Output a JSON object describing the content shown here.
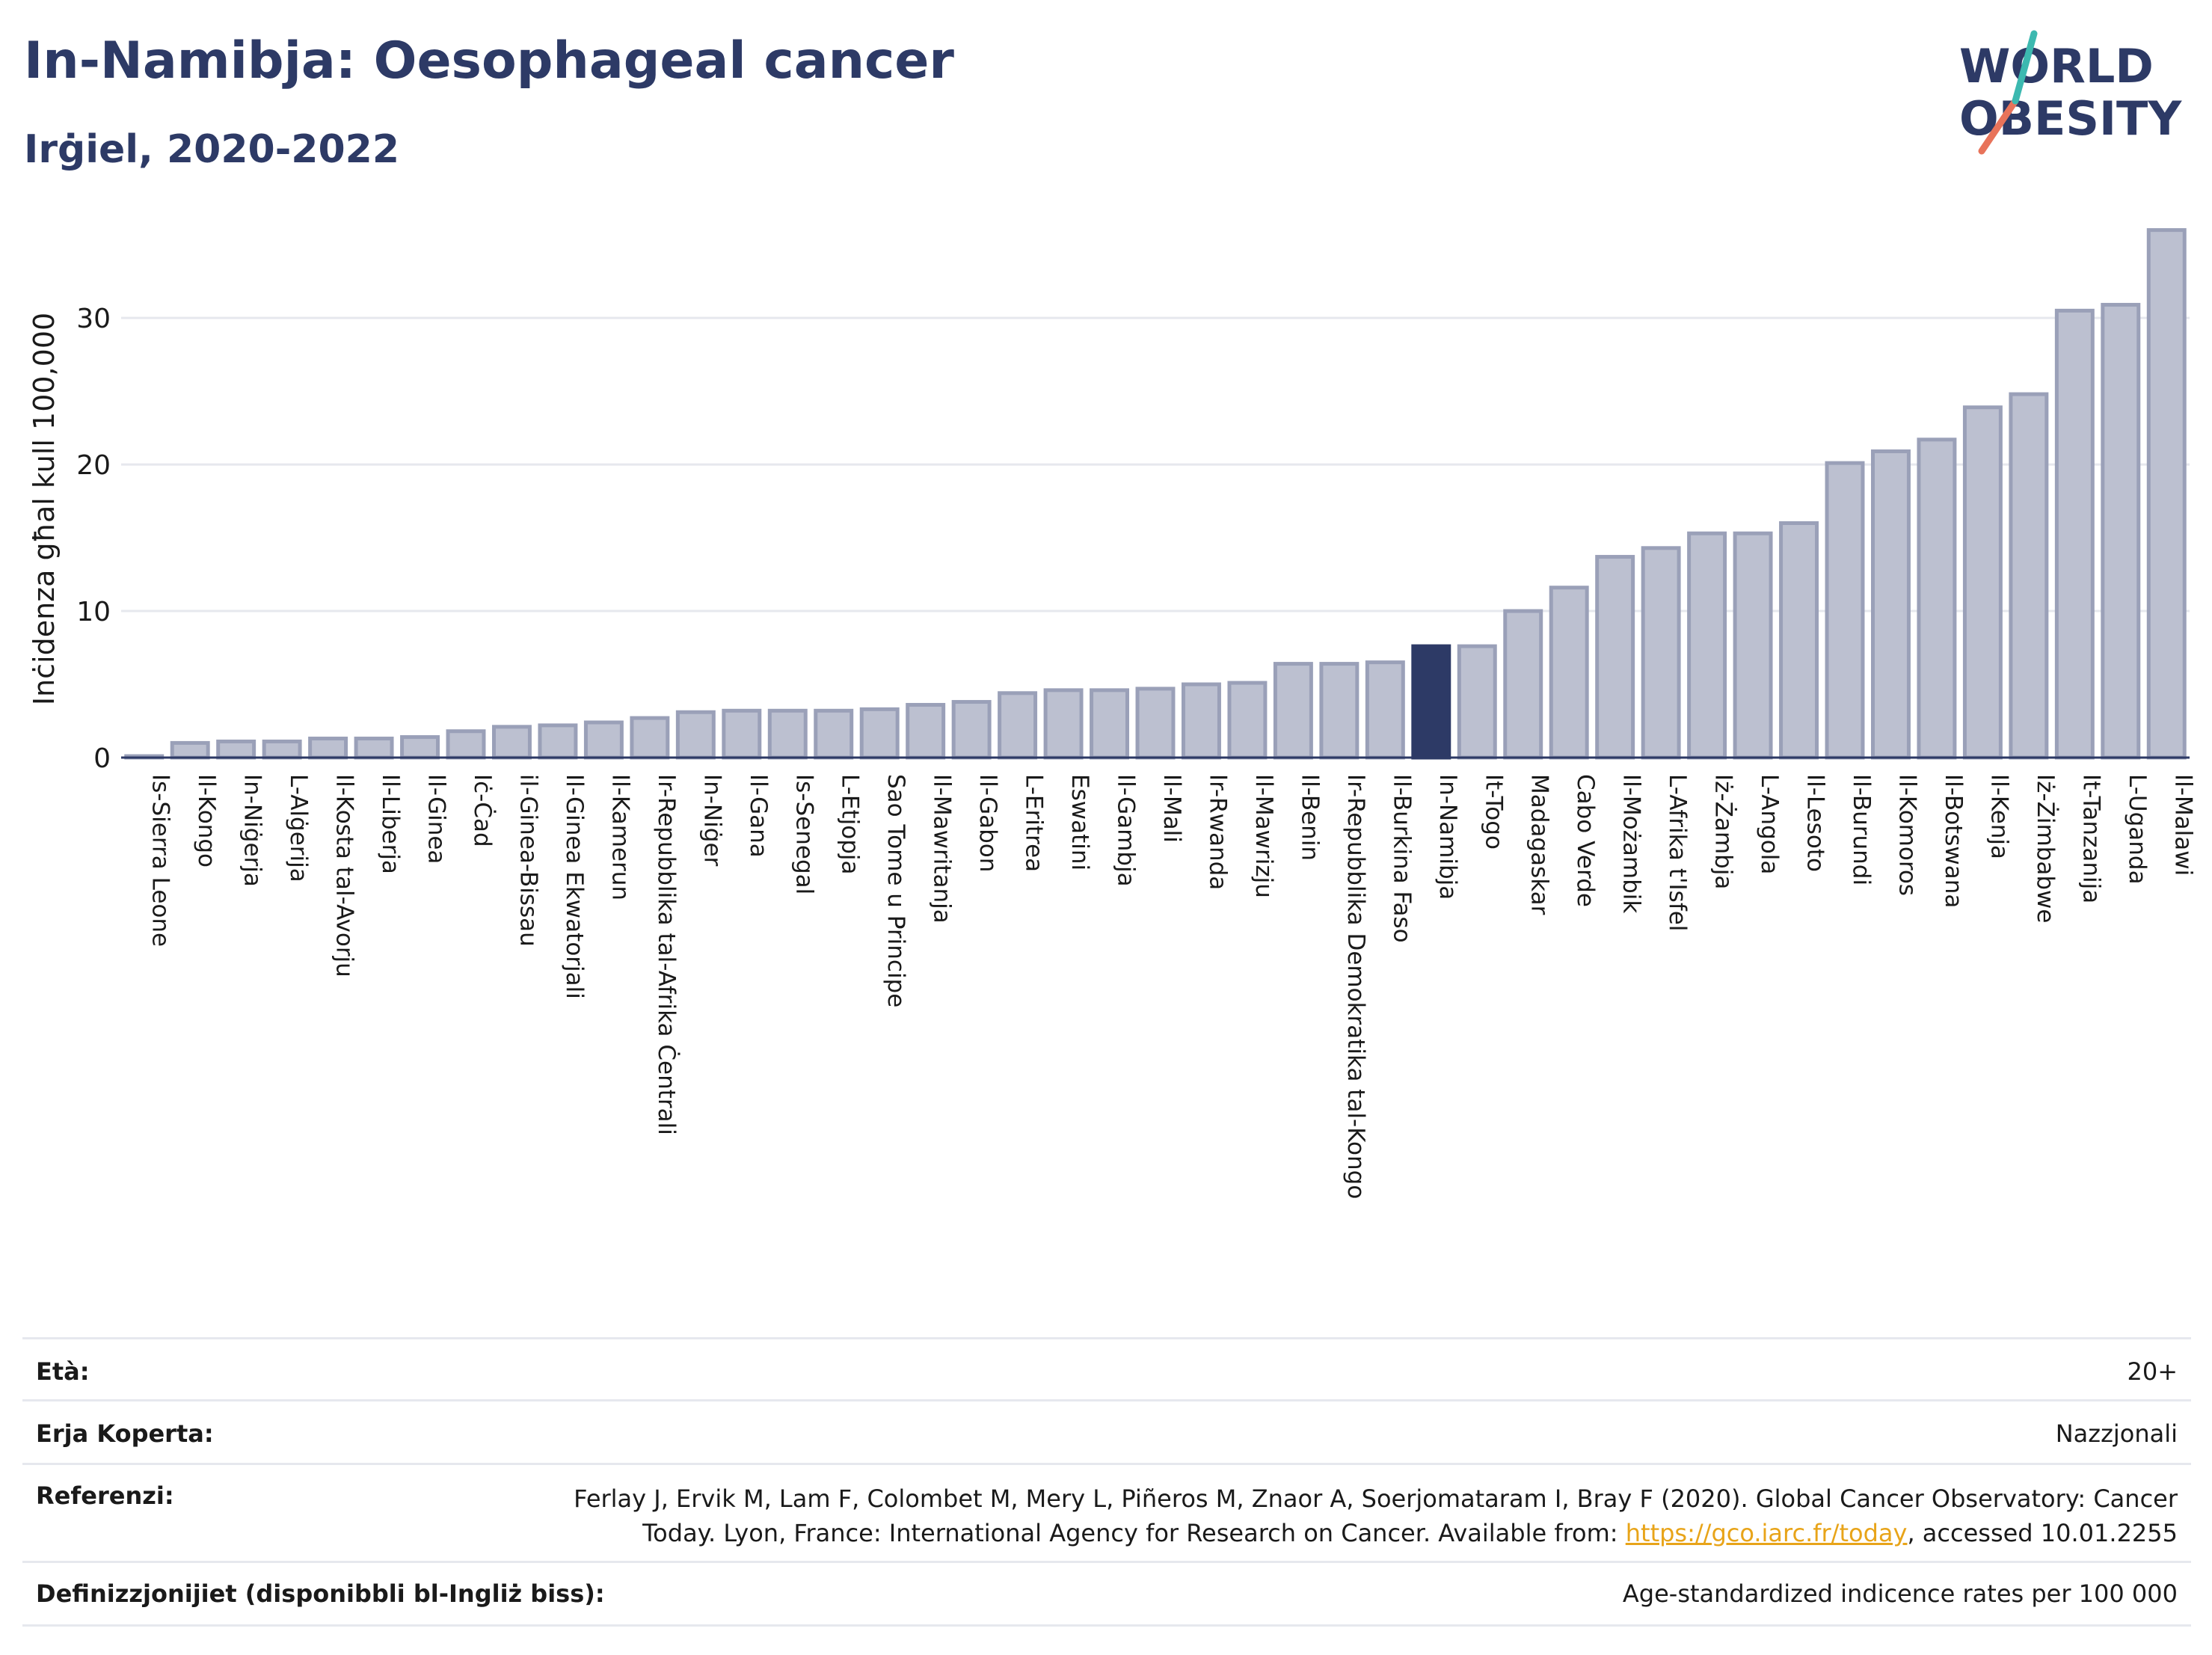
{
  "header": {
    "title": "In-Namibja: Oesophageal cancer",
    "subtitle": "Irġiel, 2020-2022",
    "logo_line1": "WORLD",
    "logo_line2": "OBESITY"
  },
  "chart_data": {
    "type": "bar",
    "ylabel": "Inċidenza għal kull 100,000",
    "xlabel": "",
    "ylim": [
      0,
      37
    ],
    "yticks": [
      0,
      10,
      20,
      30
    ],
    "grid": true,
    "highlight": "In-Namibja",
    "colors": {
      "bar": "#bcc0d0",
      "bar_edge": "#9aa0b8",
      "highlight": "#2d3a66"
    },
    "categories": [
      "Is-Sierra Leone",
      "Il-Kongo",
      "In-Niġerja",
      "L-Alġerija",
      "Il-Kosta tal-Avorju",
      "Il-Liberja",
      "Il-Ginea",
      "Iċ-Ċad",
      "il-Ginea-Bissau",
      "Il-Ginea Ekwatorjali",
      "Il-Kamerun",
      "Ir-Repubblika tal-Afrika Ċentrali",
      "In-Niġer",
      "Il-Gana",
      "Is-Senegal",
      "L-Etjopja",
      "Sao Tome u Principe",
      "Il-Mawritanja",
      "Il-Gabon",
      "L-Eritrea",
      "Eswatini",
      "Il-Gambja",
      "Il-Mali",
      "Ir-Rwanda",
      "Il-Mawrizju",
      "Il-Benin",
      "Ir-Repubblika Demokratika tal-Kongo",
      "Il-Burkina Faso",
      "In-Namibja",
      "It-Togo",
      "Madagaskar",
      "Cabo Verde",
      "Il-Możambik",
      "L-Afrika t'Isfel",
      "Iż-Żambja",
      "L-Angola",
      "Il-Lesoto",
      "Il-Burundi",
      "Il-Komoros",
      "Il-Botswana",
      "Il-Kenja",
      "Iż-Żimbabwe",
      "It-Tanzanija",
      "L-Uganda",
      "Il-Malawi"
    ],
    "values": [
      0.1,
      1.0,
      1.1,
      1.1,
      1.3,
      1.3,
      1.4,
      1.8,
      2.1,
      2.2,
      2.4,
      2.7,
      3.1,
      3.2,
      3.2,
      3.2,
      3.3,
      3.6,
      3.8,
      4.4,
      4.6,
      4.6,
      4.7,
      5.0,
      5.1,
      6.4,
      6.4,
      6.5,
      7.6,
      7.6,
      10.0,
      11.6,
      13.7,
      14.3,
      15.3,
      15.3,
      16.0,
      20.1,
      20.9,
      21.7,
      23.9,
      24.8,
      30.5,
      30.9,
      36.0
    ]
  },
  "meta": {
    "age_label": "Età:",
    "age_value": "20+",
    "area_label": "Erja Koperta:",
    "area_value": "Nazzjonali",
    "ref_label": "Referenzi:",
    "ref_line1": "Ferlay J, Ervik M, Lam F, Colombet M, Mery L, Piñeros M, Znaor A, Soerjomataram I, Bray F (2020). Global Cancer Observatory: Cancer",
    "ref_line2_pre": "Today. Lyon, France: International Agency for Research on Cancer. Available from: ",
    "ref_link": "https://gco.iarc.fr/today",
    "ref_line2_post": ", accessed 10.01.2255",
    "def_label": "Definizzjonijiet (disponibbli bl-Ingliż biss):",
    "def_value": "Age-standardized indicence rates per 100 000"
  }
}
